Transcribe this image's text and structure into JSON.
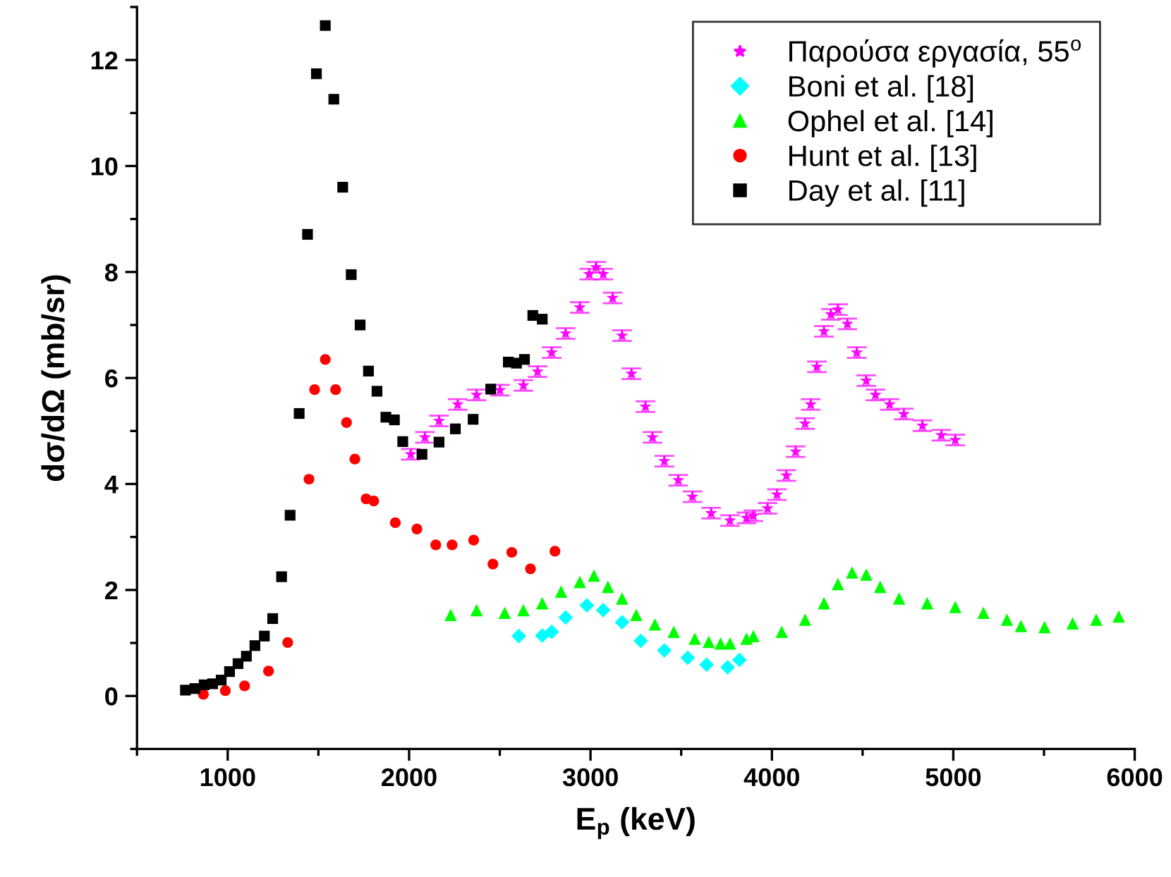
{
  "chart_data": {
    "type": "scatter",
    "xlabel": "E$_{p}$ (keV)",
    "ylabel": "dσ/dΩ (mb/sr)",
    "xlim": [
      500,
      6000
    ],
    "xticks": [
      1000,
      2000,
      3000,
      4000,
      5000,
      6000
    ],
    "ylim": [
      -1,
      13
    ],
    "yticks": [
      0,
      2,
      4,
      6,
      8,
      10,
      12
    ],
    "grid": false,
    "legend": "top right",
    "series": [
      {
        "name": "Παρούσα εργασία, 55$^{o}$",
        "color": "#ff00ff",
        "marker": "star",
        "x": [
          2009,
          2087,
          2165,
          2268,
          2372,
          2501,
          2630,
          2708,
          2786,
          2863,
          2941,
          2993,
          3031,
          3070,
          3122,
          3174,
          3226,
          3303,
          3342,
          3407,
          3484,
          3562,
          3665,
          3769,
          3860,
          3898,
          3976,
          4028,
          4080,
          4131,
          4183,
          4214,
          4248,
          4287,
          4325,
          4364,
          4416,
          4468,
          4520,
          4571,
          4649,
          4727,
          4830,
          4934,
          5011
        ],
        "values": [
          4.56,
          4.88,
          5.19,
          5.5,
          5.68,
          5.77,
          5.86,
          6.12,
          6.48,
          6.84,
          7.33,
          7.96,
          8.09,
          7.96,
          7.51,
          6.8,
          6.08,
          5.46,
          4.88,
          4.43,
          4.07,
          3.76,
          3.45,
          3.31,
          3.36,
          3.4,
          3.54,
          3.8,
          4.16,
          4.61,
          5.14,
          5.5,
          6.21,
          6.88,
          7.2,
          7.29,
          7.02,
          6.48,
          5.95,
          5.68,
          5.5,
          5.32,
          5.1,
          4.92,
          4.83
        ],
        "errors": [
          0.1,
          0.1,
          0.1,
          0.1,
          0.1,
          0.1,
          0.1,
          0.1,
          0.1,
          0.1,
          0.1,
          0.1,
          0.1,
          0.1,
          0.1,
          0.1,
          0.1,
          0.1,
          0.1,
          0.1,
          0.1,
          0.1,
          0.1,
          0.1,
          0.1,
          0.1,
          0.1,
          0.1,
          0.1,
          0.1,
          0.1,
          0.1,
          0.1,
          0.1,
          0.1,
          0.1,
          0.1,
          0.1,
          0.1,
          0.1,
          0.1,
          0.1,
          0.1,
          0.1,
          0.1
        ]
      },
      {
        "name": "Boni et al. [18]",
        "color": "#00ffff",
        "marker": "diamond",
        "x": [
          2605,
          2734,
          2786,
          2863,
          2980,
          3070,
          3174,
          3277,
          3407,
          3536,
          3640,
          3756,
          3821
        ],
        "values": [
          1.13,
          1.14,
          1.21,
          1.48,
          1.71,
          1.62,
          1.39,
          1.04,
          0.86,
          0.72,
          0.59,
          0.54,
          0.68
        ]
      },
      {
        "name": "Ophel et al. [14]",
        "color": "#00ff00",
        "marker": "triangle",
        "x": [
          2229,
          2372,
          2527,
          2630,
          2734,
          2838,
          2941,
          3019,
          3096,
          3174,
          3252,
          3355,
          3459,
          3575,
          3652,
          3717,
          3769,
          3860,
          3898,
          4054,
          4183,
          4287,
          4364,
          4442,
          4520,
          4597,
          4701,
          4856,
          5011,
          5166,
          5296,
          5373,
          5503,
          5658,
          5788,
          5912
        ],
        "values": [
          1.53,
          1.62,
          1.57,
          1.62,
          1.75,
          1.97,
          2.15,
          2.27,
          2.06,
          1.84,
          1.53,
          1.35,
          1.21,
          1.08,
          1.02,
          0.99,
          0.99,
          1.08,
          1.13,
          1.21,
          1.44,
          1.75,
          2.11,
          2.33,
          2.29,
          2.06,
          1.84,
          1.75,
          1.68,
          1.57,
          1.44,
          1.32,
          1.3,
          1.37,
          1.44,
          1.5
        ]
      },
      {
        "name": "Hunt et al. [13]",
        "color": "#ff0000",
        "marker": "circle",
        "x": [
          866,
          987,
          1093,
          1225,
          1331,
          1448,
          1479,
          1538,
          1595,
          1655,
          1701,
          1763,
          1805,
          1924,
          2043,
          2147,
          2237,
          2356,
          2462,
          2566,
          2669,
          2804
        ],
        "values": [
          0.03,
          0.1,
          0.19,
          0.47,
          1.01,
          4.09,
          5.78,
          6.35,
          5.78,
          5.16,
          4.47,
          3.72,
          3.68,
          3.27,
          3.15,
          2.85,
          2.85,
          2.94,
          2.49,
          2.71,
          2.4,
          2.73
        ]
      },
      {
        "name": "Day et al. [11]",
        "color": "#000000",
        "marker": "square",
        "x": [
          767,
          819,
          870,
          917,
          964,
          1010,
          1057,
          1103,
          1150,
          1202,
          1248,
          1297,
          1344,
          1394,
          1440,
          1489,
          1538,
          1585,
          1634,
          1681,
          1730,
          1776,
          1823,
          1872,
          1919,
          1965,
          2071,
          2165,
          2255,
          2353,
          2450,
          2547,
          2592,
          2636,
          2682,
          2734
        ],
        "values": [
          0.11,
          0.14,
          0.21,
          0.23,
          0.3,
          0.46,
          0.61,
          0.75,
          0.95,
          1.13,
          1.46,
          2.25,
          3.41,
          5.33,
          8.71,
          11.74,
          12.65,
          11.26,
          9.6,
          7.95,
          7.0,
          6.13,
          5.75,
          5.26,
          5.21,
          4.8,
          4.56,
          4.79,
          5.04,
          5.22,
          5.79,
          6.3,
          6.28,
          6.35,
          7.18,
          7.11
        ]
      }
    ]
  }
}
